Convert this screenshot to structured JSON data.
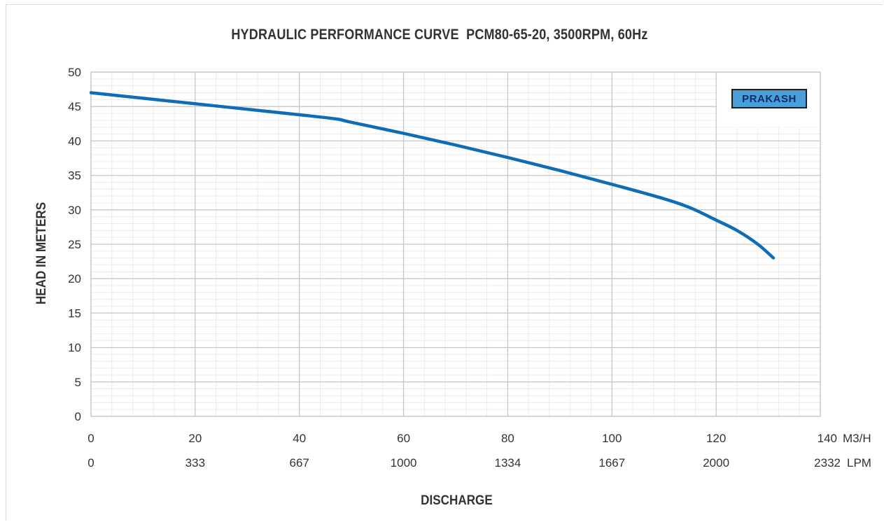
{
  "chart_data": {
    "type": "line",
    "title": "HYDRAULIC PERFORMANCE CURVE",
    "subtitle": "PCM80-65-20, 3500RPM, 60Hz",
    "xlabel": "DISCHARGE",
    "ylabel": "HEAD IN METERS",
    "xlim": [
      0,
      140
    ],
    "ylim": [
      0,
      50
    ],
    "x_ticks": [
      0,
      20,
      40,
      60,
      80,
      100,
      120,
      140
    ],
    "x_tick_labels": [
      "0",
      "20",
      "40",
      "60",
      "80",
      "100",
      "120",
      "140"
    ],
    "x_unit": "M3/H",
    "x2_tick_labels": [
      "0",
      "333",
      "667",
      "1000",
      "1334",
      "1667",
      "2000",
      "2332"
    ],
    "x2_unit": "LPM",
    "y_ticks": [
      0,
      5,
      10,
      15,
      20,
      25,
      30,
      35,
      40,
      45,
      50
    ],
    "grid": true,
    "series": [
      {
        "color": "#0f6cb6",
        "x": [
          0,
          10,
          20,
          30,
          40,
          47,
          50,
          60,
          70,
          80,
          90,
          100,
          110,
          115,
          120,
          124,
          128,
          131
        ],
        "y": [
          47.0,
          46.2,
          45.4,
          44.6,
          43.8,
          43.2,
          42.7,
          41.1,
          39.4,
          37.6,
          35.7,
          33.7,
          31.6,
          30.3,
          28.5,
          27.0,
          25.0,
          23.0
        ]
      }
    ]
  },
  "logo": {
    "text": "PRAKASH"
  }
}
